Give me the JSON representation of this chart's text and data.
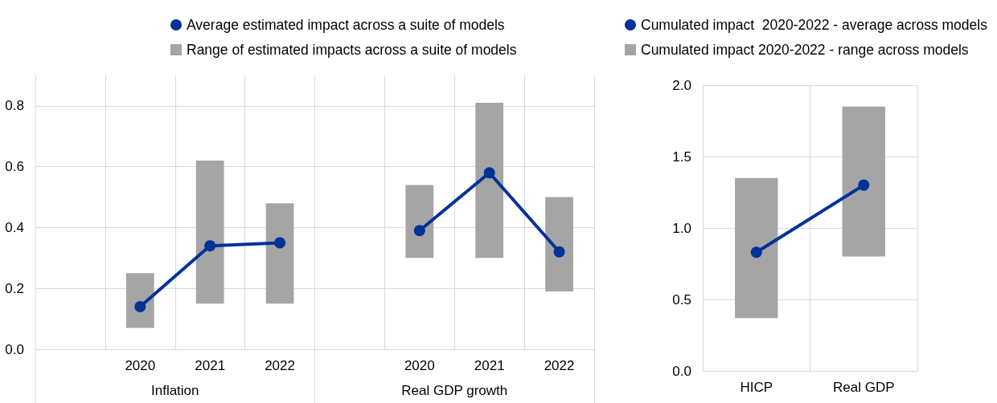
{
  "chart_data": [
    {
      "type": "bar",
      "categories": [
        null,
        "2020",
        "2021",
        "2022",
        null,
        "2020",
        "2021",
        "2022"
      ],
      "series": [
        {
          "name": "Average estimated impact across a suite of models",
          "type": "line",
          "color": "#003299",
          "values": [
            null,
            0.14,
            0.34,
            0.35,
            null,
            0.39,
            0.58,
            0.32
          ]
        },
        {
          "name": "Range of estimated impacts across a suite of models",
          "color": "#a5a5a5",
          "base": [
            null,
            0.07,
            0.15,
            0.15,
            null,
            0.3,
            0.3,
            0.19
          ],
          "values": [
            null,
            0.18,
            0.47,
            0.33,
            null,
            0.24,
            0.51,
            0.31
          ]
        }
      ],
      "ylim": [
        0,
        0.9
      ],
      "yticks": [
        {
          "value": 0,
          "label": "0.0"
        },
        0.2,
        0.4,
        0.6,
        0.8
      ],
      "annotations": [
        "Inflation",
        "Real GDP growth"
      ],
      "grid": true,
      "legend": "top",
      "marker": "circle"
    },
    {
      "type": "bar",
      "categories": [
        "HICP",
        "Real GDP"
      ],
      "series": [
        {
          "name": "Cumulated impact  2020-2022 - average across models",
          "type": "line",
          "color": "#003299",
          "values": [
            0.83,
            1.3
          ]
        },
        {
          "name": "Cumulated impact 2020-2022 - range across models",
          "color": "#a5a5a5",
          "base": [
            0.37,
            0.8
          ],
          "values": [
            0.98,
            1.05
          ]
        }
      ],
      "ylim": [
        0,
        2
      ],
      "yticks": [
        {
          "value": 0,
          "label": "0.0"
        },
        0.5,
        {
          "value": 1,
          "label": "1.0"
        },
        1.5,
        {
          "value": 2,
          "label": "2.0"
        }
      ],
      "grid": true,
      "legend": "top",
      "marker": "circle"
    }
  ]
}
